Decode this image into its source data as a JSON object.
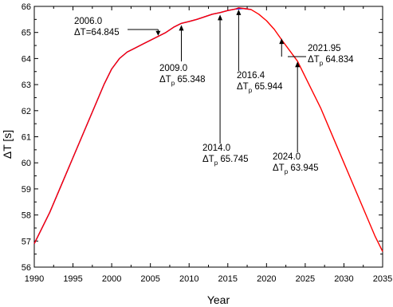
{
  "chart_data": {
    "type": "line",
    "xlabel": "Year",
    "ylabel": "ΔT [s]",
    "xlim": [
      1990,
      2035
    ],
    "ylim": [
      56,
      66
    ],
    "xticks": [
      1990,
      1995,
      2000,
      2005,
      2010,
      2015,
      2020,
      2025,
      2030,
      2035
    ],
    "yticks": [
      56,
      57,
      58,
      59,
      60,
      61,
      62,
      63,
      64,
      65,
      66
    ],
    "grid": false,
    "series": [
      {
        "color": "#0000ff",
        "x": [
          1990,
          1991,
          1992,
          1993,
          1994,
          1995,
          1996,
          1997,
          1998,
          1999,
          2000,
          2001,
          2002,
          2003,
          2004,
          2005,
          2006,
          2007,
          2008,
          2009,
          2010,
          2011,
          2012,
          2013,
          2014,
          2015,
          2016,
          2017,
          2018
        ],
        "y": [
          56.9,
          57.5,
          58.1,
          58.8,
          59.5,
          60.2,
          60.9,
          61.6,
          62.3,
          63.0,
          63.6,
          64.0,
          64.25,
          64.4,
          64.55,
          64.7,
          64.85,
          65.0,
          65.2,
          65.35,
          65.42,
          65.5,
          65.6,
          65.7,
          65.76,
          65.84,
          65.9,
          65.92,
          65.88
        ]
      },
      {
        "color": "#ff0000",
        "x": [
          1990,
          1991,
          1992,
          1993,
          1994,
          1995,
          1996,
          1997,
          1998,
          1999,
          2000,
          2001,
          2002,
          2003,
          2004,
          2005,
          2006,
          2007,
          2008,
          2009,
          2010,
          2011,
          2012,
          2013,
          2014,
          2015,
          2016,
          2016.4,
          2017,
          2018,
          2019,
          2020,
          2021,
          2022,
          2023,
          2024,
          2025,
          2026,
          2027,
          2028,
          2029,
          2030,
          2031,
          2032,
          2033,
          2034,
          2035
        ],
        "y": [
          56.9,
          57.5,
          58.1,
          58.8,
          59.5,
          60.2,
          60.9,
          61.6,
          62.3,
          63.0,
          63.6,
          64.0,
          64.25,
          64.4,
          64.55,
          64.7,
          64.85,
          65.0,
          65.2,
          65.35,
          65.42,
          65.5,
          65.6,
          65.7,
          65.76,
          65.84,
          65.9,
          65.944,
          65.92,
          65.88,
          65.7,
          65.45,
          65.12,
          64.7,
          64.3,
          63.9,
          63.3,
          62.7,
          62.1,
          61.4,
          60.7,
          60.0,
          59.3,
          58.6,
          57.9,
          57.2,
          56.6
        ]
      }
    ],
    "annotations": [
      {
        "id": "a2006",
        "year": "2006.0",
        "label": "ΔT=64.845",
        "x": 2006.0,
        "y": 64.845,
        "arrow_dir": "down"
      },
      {
        "id": "a2009",
        "year": "2009.0",
        "label_main": "ΔT",
        "label_sub": "p",
        "label_value": " 65.348",
        "x": 2009.0,
        "y": 65.348,
        "arrow_dir": "up"
      },
      {
        "id": "a2014",
        "year": "2014.0",
        "label_main": "ΔT",
        "label_sub": "p",
        "label_value": " 65.745",
        "x": 2014.0,
        "y": 65.745,
        "arrow_dir": "up"
      },
      {
        "id": "a2016",
        "year": "2016.4",
        "label_main": "ΔT",
        "label_sub": "p",
        "label_value": " 65.944",
        "x": 2016.4,
        "y": 65.944,
        "arrow_dir": "up"
      },
      {
        "id": "a2021",
        "year": "2021.95",
        "label_main": "ΔT",
        "label_sub": "p",
        "label_value": " 64.834",
        "x": 2021.95,
        "y": 64.834,
        "arrow_dir": "up"
      },
      {
        "id": "a2024",
        "year": "2024.0",
        "label_main": "ΔT",
        "label_sub": "p",
        "label_value": " 63.945",
        "x": 2024.0,
        "y": 63.945,
        "arrow_dir": "up"
      }
    ]
  }
}
